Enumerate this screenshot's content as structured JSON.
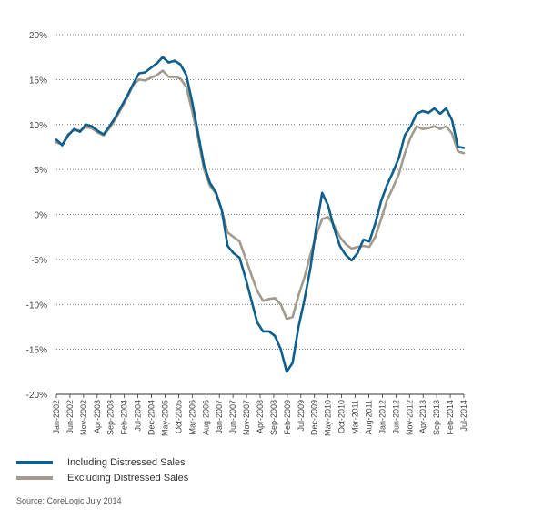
{
  "chart_data": {
    "type": "line",
    "ylim": [
      -20,
      20
    ],
    "yticks": [
      "20%",
      "15%",
      "10%",
      "5%",
      "0%",
      "-5%",
      "-10%",
      "-15%",
      "-20%"
    ],
    "xticks": [
      "Jan-2002",
      "Jun-2002",
      "Nov-2002",
      "Apr-2003",
      "Sep-2003",
      "Feb-2004",
      "Jul-2004",
      "Dec-2004",
      "May-2005",
      "Oct-2005",
      "Mar-2006",
      "Aug-2006",
      "Jan-2007",
      "Jun-2007",
      "Nov-2007",
      "Apr-2008",
      "Sep-2008",
      "Feb-2009",
      "Jul-2009",
      "Dec-2009",
      "May-2010",
      "Oct-2010",
      "Mar-2011",
      "Aug-2011",
      "Jan-2012",
      "Jun-2012",
      "Nov-2012",
      "Apr-2013",
      "Sep-2013",
      "Feb-2014",
      "Jul-2014"
    ],
    "grid": true,
    "legend_position": "bottom-left",
    "series": [
      {
        "name": "Including Distressed Sales",
        "color": "#0e5f8c",
        "points": [
          [
            "2002-01",
            8.3
          ],
          [
            "2002-03",
            7.7
          ],
          [
            "2002-05",
            8.8
          ],
          [
            "2002-07",
            9.5
          ],
          [
            "2002-09",
            9.2
          ],
          [
            "2002-11",
            10.0
          ],
          [
            "2003-01",
            9.8
          ],
          [
            "2003-03",
            9.3
          ],
          [
            "2003-05",
            8.9
          ],
          [
            "2003-07",
            9.8
          ],
          [
            "2003-09",
            10.8
          ],
          [
            "2003-11",
            12.0
          ],
          [
            "2004-01",
            13.2
          ],
          [
            "2004-03",
            14.5
          ],
          [
            "2004-05",
            15.7
          ],
          [
            "2004-07",
            15.8
          ],
          [
            "2004-09",
            16.3
          ],
          [
            "2004-11",
            16.8
          ],
          [
            "2005-01",
            17.5
          ],
          [
            "2005-03",
            16.9
          ],
          [
            "2005-05",
            17.1
          ],
          [
            "2005-07",
            16.7
          ],
          [
            "2005-09",
            15.5
          ],
          [
            "2005-11",
            12.5
          ],
          [
            "2006-01",
            9.0
          ],
          [
            "2006-03",
            5.5
          ],
          [
            "2006-05",
            3.5
          ],
          [
            "2006-07",
            2.5
          ],
          [
            "2006-09",
            0.5
          ],
          [
            "2006-11",
            -3.5
          ],
          [
            "2007-01",
            -4.3
          ],
          [
            "2007-03",
            -4.8
          ],
          [
            "2007-05",
            -7.0
          ],
          [
            "2007-07",
            -9.5
          ],
          [
            "2007-09",
            -12.0
          ],
          [
            "2007-11",
            -13.0
          ],
          [
            "2008-01",
            -13.0
          ],
          [
            "2008-03",
            -13.5
          ],
          [
            "2008-05",
            -15.0
          ],
          [
            "2008-07",
            -17.5
          ],
          [
            "2008-09",
            -16.5
          ],
          [
            "2008-11",
            -12.5
          ],
          [
            "2009-01",
            -9.5
          ],
          [
            "2009-03",
            -6.0
          ],
          [
            "2009-05",
            -1.5
          ],
          [
            "2009-07",
            2.4
          ],
          [
            "2009-09",
            1.0
          ],
          [
            "2009-11",
            -1.5
          ],
          [
            "2010-01",
            -3.5
          ],
          [
            "2010-03",
            -4.5
          ],
          [
            "2010-05",
            -5.1
          ],
          [
            "2010-07",
            -4.3
          ],
          [
            "2010-09",
            -2.8
          ],
          [
            "2010-11",
            -3.0
          ],
          [
            "2011-01",
            -1.0
          ],
          [
            "2011-03",
            1.5
          ],
          [
            "2011-05",
            3.3
          ],
          [
            "2011-07",
            4.7
          ],
          [
            "2011-09",
            6.3
          ],
          [
            "2011-11",
            8.8
          ],
          [
            "2012-01",
            9.8
          ],
          [
            "2012-03",
            11.2
          ],
          [
            "2012-05",
            11.5
          ],
          [
            "2012-07",
            11.3
          ],
          [
            "2012-09",
            11.8
          ],
          [
            "2012-11",
            11.2
          ],
          [
            "2013-01",
            11.8
          ],
          [
            "2013-03",
            10.5
          ],
          [
            "2013-05",
            7.5
          ],
          [
            "2013-07",
            7.4
          ]
        ]
      },
      {
        "name": "Excluding Distressed Sales",
        "color": "#a39a8e",
        "points": [
          [
            "2002-01",
            8.0
          ],
          [
            "2002-03",
            7.8
          ],
          [
            "2002-05",
            8.9
          ],
          [
            "2002-07",
            9.4
          ],
          [
            "2002-09",
            9.3
          ],
          [
            "2002-11",
            9.7
          ],
          [
            "2003-01",
            9.6
          ],
          [
            "2003-03",
            9.1
          ],
          [
            "2003-05",
            8.8
          ],
          [
            "2003-07",
            9.6
          ],
          [
            "2003-09",
            10.6
          ],
          [
            "2003-11",
            11.8
          ],
          [
            "2004-01",
            13.0
          ],
          [
            "2004-03",
            14.4
          ],
          [
            "2004-05",
            15.0
          ],
          [
            "2004-07",
            14.9
          ],
          [
            "2004-09",
            15.2
          ],
          [
            "2004-11",
            15.5
          ],
          [
            "2005-01",
            16.0
          ],
          [
            "2005-03",
            15.3
          ],
          [
            "2005-05",
            15.3
          ],
          [
            "2005-07",
            15.1
          ],
          [
            "2005-09",
            14.2
          ],
          [
            "2005-11",
            11.5
          ],
          [
            "2006-01",
            8.5
          ],
          [
            "2006-03",
            5.0
          ],
          [
            "2006-05",
            3.2
          ],
          [
            "2006-07",
            2.3
          ],
          [
            "2006-09",
            0.5
          ],
          [
            "2006-11",
            -2.0
          ],
          [
            "2007-01",
            -2.5
          ],
          [
            "2007-03",
            -3.0
          ],
          [
            "2007-05",
            -4.8
          ],
          [
            "2007-07",
            -6.7
          ],
          [
            "2007-09",
            -8.5
          ],
          [
            "2007-11",
            -9.6
          ],
          [
            "2008-01",
            -9.4
          ],
          [
            "2008-03",
            -9.3
          ],
          [
            "2008-05",
            -10.0
          ],
          [
            "2008-07",
            -11.6
          ],
          [
            "2008-09",
            -11.4
          ],
          [
            "2008-11",
            -9.0
          ],
          [
            "2009-01",
            -7.0
          ],
          [
            "2009-03",
            -4.5
          ],
          [
            "2009-05",
            -2.3
          ],
          [
            "2009-07",
            -0.5
          ],
          [
            "2009-09",
            -0.3
          ],
          [
            "2009-11",
            -1.2
          ],
          [
            "2010-01",
            -2.5
          ],
          [
            "2010-03",
            -3.3
          ],
          [
            "2010-05",
            -3.8
          ],
          [
            "2010-07",
            -3.6
          ],
          [
            "2010-09",
            -3.5
          ],
          [
            "2010-11",
            -3.6
          ],
          [
            "2011-01",
            -2.5
          ],
          [
            "2011-03",
            -0.5
          ],
          [
            "2011-05",
            1.6
          ],
          [
            "2011-07",
            3.0
          ],
          [
            "2011-09",
            4.5
          ],
          [
            "2011-11",
            6.8
          ],
          [
            "2012-01",
            8.6
          ],
          [
            "2012-03",
            9.8
          ],
          [
            "2012-05",
            9.5
          ],
          [
            "2012-07",
            9.6
          ],
          [
            "2012-09",
            9.8
          ],
          [
            "2012-11",
            9.5
          ],
          [
            "2013-01",
            9.8
          ],
          [
            "2013-03",
            9.0
          ],
          [
            "2013-05",
            7.0
          ],
          [
            "2013-07",
            6.8
          ]
        ]
      }
    ]
  },
  "legend": {
    "including": "Including Distressed Sales",
    "excluding": "Excluding Distressed Sales"
  },
  "source": "Source: CoreLogic July 2014"
}
